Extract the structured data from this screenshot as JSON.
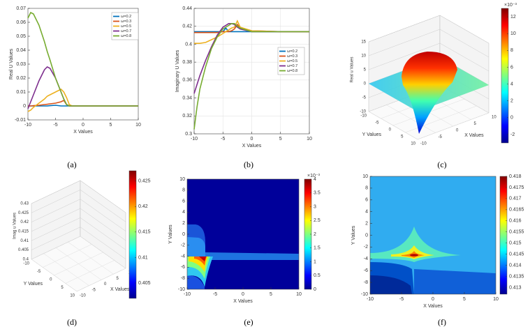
{
  "chart_data": [
    {
      "type": "line",
      "caption": "(a)",
      "xlabel": "X Values",
      "ylabel": "Real U Values",
      "x": [
        -10,
        -9.5,
        -9,
        -8,
        -7,
        -6.5,
        -6,
        -5,
        -4,
        -3.5,
        -3,
        -2.5,
        -2,
        0,
        5,
        10
      ],
      "series": [
        {
          "name": "ω=0.2",
          "color": "#0072bd",
          "values": [
            0,
            0,
            0,
            0,
            0,
            0,
            0.0002,
            0.0005,
            0,
            0,
            0,
            0,
            0,
            0,
            0,
            0
          ]
        },
        {
          "name": "ω=0.3",
          "color": "#d95319",
          "values": [
            0,
            0,
            0.0002,
            0.0005,
            0.001,
            0.0012,
            0.0015,
            0.002,
            0.003,
            0.004,
            0.001,
            0,
            0,
            0,
            0,
            0
          ]
        },
        {
          "name": "ω=0.5",
          "color": "#edb120",
          "values": [
            -0.004,
            -0.003,
            -0.001,
            0.002,
            0.005,
            0.007,
            0.008,
            0.01,
            0.012,
            0.01,
            0.006,
            0.001,
            0,
            0,
            0,
            0
          ]
        },
        {
          "name": "ω=0.7",
          "color": "#7e2f8e",
          "values": [
            -0.002,
            0.003,
            0.008,
            0.018,
            0.026,
            0.028,
            0.027,
            0.02,
            0.01,
            0.005,
            0.001,
            0,
            0,
            0,
            0,
            0
          ]
        },
        {
          "name": "ω=0.8",
          "color": "#77ac30",
          "values": [
            0.063,
            0.067,
            0.066,
            0.058,
            0.046,
            0.039,
            0.033,
            0.02,
            0.01,
            0.005,
            0.001,
            0,
            0,
            0,
            0,
            0
          ]
        }
      ],
      "xlim": [
        -10,
        10
      ],
      "xticks": [
        -10,
        -5,
        0,
        5,
        10
      ],
      "ylim": [
        -0.01,
        0.07
      ],
      "yticks": [
        -0.01,
        0,
        0.01,
        0.02,
        0.03,
        0.04,
        0.05,
        0.06,
        0.07
      ],
      "grid": false,
      "legend": "upper right"
    },
    {
      "type": "line",
      "caption": "(b)",
      "xlabel": "X Values",
      "ylabel": "Imaginary U Values",
      "x": [
        -10,
        -9.5,
        -9,
        -8,
        -7,
        -6,
        -5,
        -4.5,
        -4,
        -3.5,
        -3,
        -2.5,
        -2,
        0,
        5,
        10
      ],
      "series": [
        {
          "name": "ω=0.2",
          "color": "#0072bd",
          "values": [
            0.414,
            0.414,
            0.414,
            0.414,
            0.414,
            0.414,
            0.414,
            0.418,
            0.414,
            0.414,
            0.414,
            0.414,
            0.414,
            0.414,
            0.414,
            0.414
          ]
        },
        {
          "name": "ω=0.3",
          "color": "#d95319",
          "values": [
            0.413,
            0.413,
            0.413,
            0.413,
            0.413,
            0.413,
            0.414,
            0.414,
            0.414,
            0.415,
            0.417,
            0.422,
            0.418,
            0.415,
            0.414,
            0.414
          ]
        },
        {
          "name": "ω=0.5",
          "color": "#edb120",
          "values": [
            0.401,
            0.401,
            0.401,
            0.402,
            0.405,
            0.408,
            0.412,
            0.414,
            0.416,
            0.418,
            0.419,
            0.426,
            0.419,
            0.415,
            0.414,
            0.414
          ]
        },
        {
          "name": "ω=0.7",
          "color": "#7e2f8e",
          "values": [
            0.345,
            0.355,
            0.365,
            0.382,
            0.397,
            0.41,
            0.419,
            0.421,
            0.423,
            0.423,
            0.422,
            0.419,
            0.417,
            0.414,
            0.414,
            0.414
          ]
        },
        {
          "name": "ω=0.8",
          "color": "#77ac30",
          "values": [
            0.305,
            0.33,
            0.35,
            0.375,
            0.395,
            0.408,
            0.417,
            0.419,
            0.421,
            0.423,
            0.423,
            0.42,
            0.418,
            0.414,
            0.414,
            0.414
          ]
        }
      ],
      "xlim": [
        -10,
        10
      ],
      "xticks": [
        -10,
        -5,
        0,
        5,
        10
      ],
      "ylim": [
        0.3,
        0.44
      ],
      "yticks": [
        0.3,
        0.32,
        0.34,
        0.36,
        0.38,
        0.4,
        0.42,
        0.44
      ],
      "grid": true,
      "legend": "center right"
    },
    {
      "type": "surface",
      "caption": "(c)",
      "xlabel": "X Values",
      "ylabel": "Y Values",
      "zlabel": "Real u Values",
      "xlim": [
        -10,
        10
      ],
      "xticks": [
        -10,
        -5,
        0,
        5,
        10
      ],
      "ylim": [
        -10,
        10
      ],
      "yticks": [
        -10,
        -5,
        0,
        5,
        10
      ],
      "zlim": [
        -10,
        15
      ],
      "zticks": [
        -10,
        -5,
        0,
        5,
        10,
        15
      ],
      "colorbar": {
        "lim": [
          -3,
          13
        ],
        "ticks": [
          -2,
          0,
          2,
          4,
          6,
          8,
          10,
          12
        ],
        "exponent": "×10⁻³"
      }
    },
    {
      "type": "surface",
      "caption": "(d)",
      "xlabel": "X Values",
      "ylabel": "Y Values",
      "zlabel": "Imag u Values",
      "xlim": [
        -10,
        10
      ],
      "xticks": [
        -10,
        -5,
        0,
        5,
        10
      ],
      "ylim": [
        -10,
        10
      ],
      "yticks": [
        -10,
        -5,
        0,
        5,
        10
      ],
      "zlim": [
        0.4,
        0.43
      ],
      "zticks": [
        0.4,
        0.405,
        0.41,
        0.415,
        0.42,
        0.425,
        0.43
      ],
      "colorbar": {
        "lim": [
          0.402,
          0.427
        ],
        "ticks": [
          0.405,
          0.41,
          0.415,
          0.42,
          0.425
        ]
      }
    },
    {
      "type": "contour",
      "caption": "(e)",
      "xlabel": "X Values",
      "ylabel": "Y Values",
      "xlim": [
        -10,
        10
      ],
      "xticks": [
        -10,
        -5,
        0,
        5,
        10
      ],
      "ylim": [
        -10,
        10
      ],
      "yticks": [
        -10,
        -8,
        -6,
        -4,
        -2,
        0,
        2,
        4,
        6,
        8,
        10
      ],
      "colorbar": {
        "lim": [
          0,
          4
        ],
        "ticks": [
          0,
          0.5,
          1,
          1.5,
          2,
          2.5,
          3,
          3.5,
          4
        ],
        "exponent": "×10⁻³"
      }
    },
    {
      "type": "contour",
      "caption": "(f)",
      "xlabel": "X Values",
      "ylabel": "Y Values",
      "xlim": [
        -10,
        10
      ],
      "xticks": [
        -10,
        -5,
        0,
        5,
        10
      ],
      "ylim": [
        -10,
        10
      ],
      "yticks": [
        -10,
        -8,
        -6,
        -4,
        -2,
        0,
        2,
        4,
        6,
        8,
        10
      ],
      "colorbar": {
        "lim": [
          0.4127,
          0.418
        ],
        "ticks": [
          0.413,
          0.4135,
          0.414,
          0.4145,
          0.415,
          0.4155,
          0.416,
          0.4165,
          0.417,
          0.4175,
          0.418
        ]
      }
    }
  ]
}
